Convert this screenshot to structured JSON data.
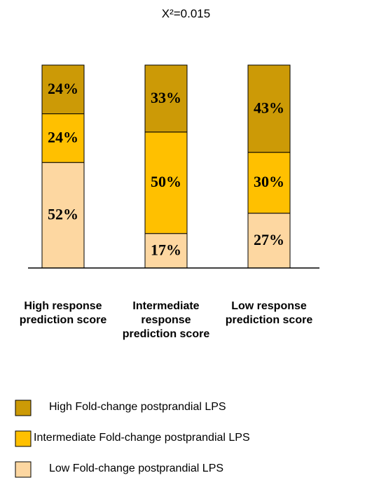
{
  "chart_data": {
    "type": "stacked_bar",
    "title": "X²=0.015",
    "categories": [
      "High response prediction score",
      "Intermediate response prediction score",
      "Low response prediction score"
    ],
    "series": [
      {
        "name": "Low Fold-change postprandial LPS",
        "color": "#fdd7a1",
        "values": [
          52,
          17,
          27
        ],
        "value_labels": [
          "52%",
          "17%",
          "27%"
        ]
      },
      {
        "name": "Intermediate Fold-change postprandial LPS",
        "color": "#ffc000",
        "values": [
          24,
          50,
          30
        ],
        "value_labels": [
          "24%",
          "50%",
          "30%"
        ]
      },
      {
        "name": "High Fold-change postprandial LPS",
        "color": "#cc9a06",
        "values": [
          24,
          33,
          43
        ],
        "value_labels": [
          "24%",
          "33%",
          "43%"
        ]
      }
    ]
  }
}
